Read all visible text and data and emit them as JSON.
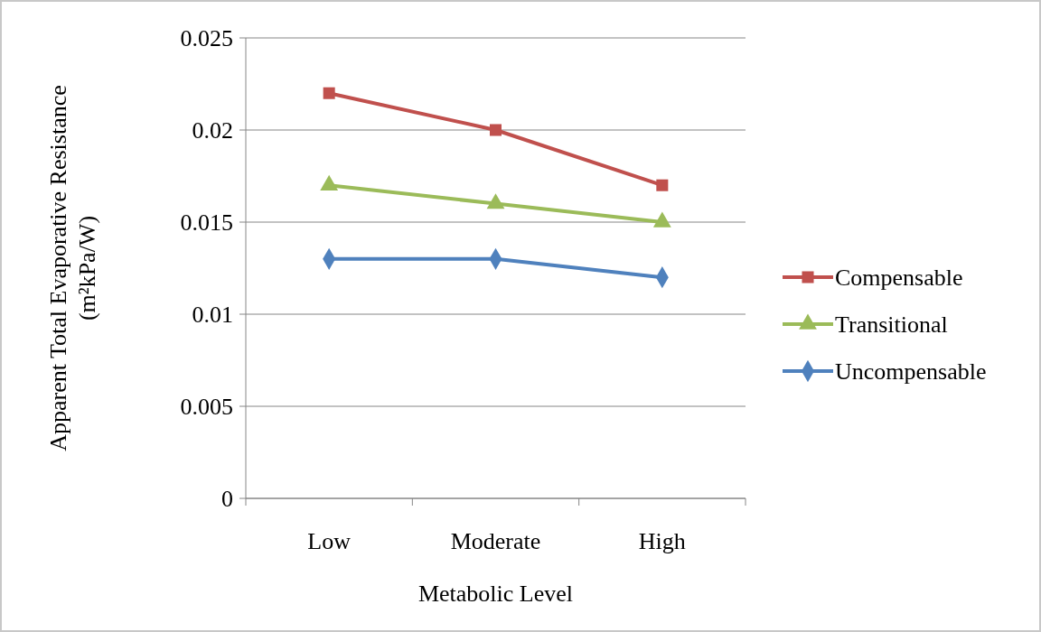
{
  "chart_data": {
    "type": "line",
    "xlabel": "Metabolic Level",
    "ylabel": "Apparent Total Evaporative Resistance (m²kPa/W)",
    "categories": [
      "Low",
      "Moderate",
      "High"
    ],
    "series": [
      {
        "name": "Compensable",
        "color": "#c0504d",
        "marker": "square",
        "values": [
          0.022,
          0.02,
          0.017
        ]
      },
      {
        "name": "Transitional",
        "color": "#9bbb59",
        "marker": "triangle",
        "values": [
          0.017,
          0.016,
          0.015
        ]
      },
      {
        "name": "Uncompensable",
        "color": "#4f81bd",
        "marker": "diamond",
        "values": [
          0.013,
          0.013,
          0.012
        ]
      }
    ],
    "ylim": [
      0,
      0.025
    ],
    "yticks": [
      0,
      0.005,
      0.01,
      0.015,
      0.02,
      0.025
    ],
    "grid": "y",
    "legend": "right",
    "line_style": "solid"
  }
}
